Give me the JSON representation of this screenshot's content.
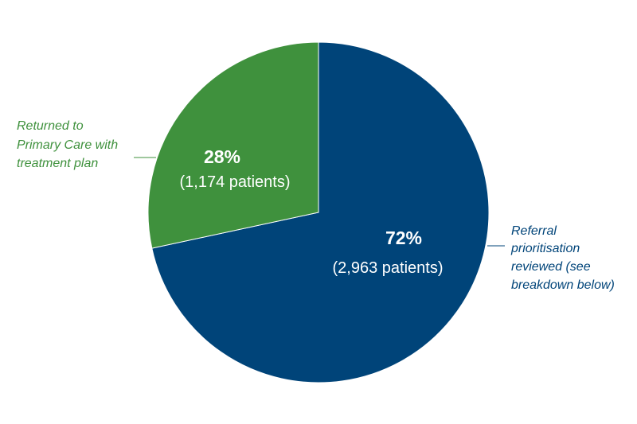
{
  "chart_data": {
    "type": "pie",
    "slices": [
      {
        "label": "Referral prioritisation reviewed (see breakdown below)",
        "label_lines": [
          "Referral",
          "prioritisation",
          "reviewed (see",
          "breakdown below)"
        ],
        "value": 2963,
        "percent_label": "72%",
        "count_label": "(2,963 patients)",
        "color": "#004479"
      },
      {
        "label": "Returned to Primary Care with treatment plan",
        "label_lines": [
          "Returned to",
          "Primary Care with",
          "treatment plan"
        ],
        "value": 1174,
        "percent_label": "28%",
        "count_label": "(1,174 patients)",
        "color": "#3f913d"
      }
    ],
    "start_angle": "12 o'clock",
    "direction": "clockwise",
    "legend": "none (callout labels outside slices)"
  }
}
